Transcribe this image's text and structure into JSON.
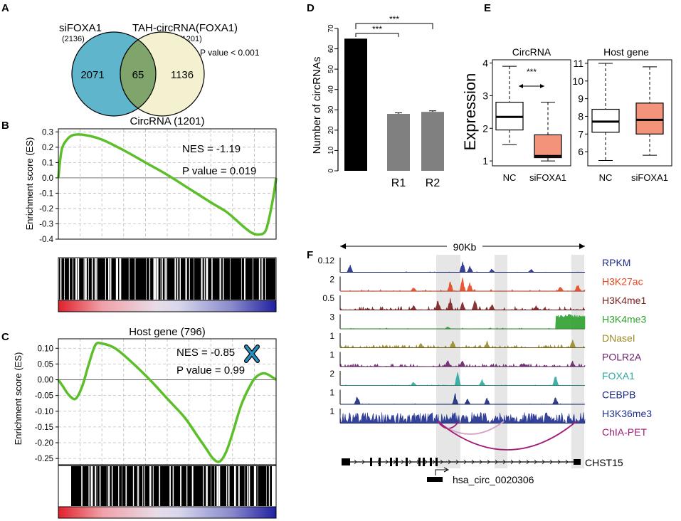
{
  "colors": {
    "venn_left": "#5fb5cc",
    "venn_right": "#f4f1d0",
    "venn_overlap": "#7fa56c",
    "gsea_line": "#5cbf2a",
    "bar_black": "#000000",
    "bar_gray": "#808080",
    "box_salmon": "#f3937a",
    "chip_highlight": "#e6e6e6",
    "cross": "#2a8fbf"
  },
  "panelA": {
    "label": "A",
    "left_title": "siFOXA1",
    "left_count": "(2136)",
    "right_title": "TAH-circRNA(FOXA1)",
    "right_count": "(1201)",
    "left_only": "2071",
    "overlap": "65",
    "right_only": "1136",
    "pvalue": "P value < 0.001"
  },
  "chart_data": [
    {
      "id": "B",
      "type": "line",
      "label": "B",
      "title": "CircRNA (1201)",
      "ylabel": "Enrichment score (ES)",
      "ylim": [
        -0.4,
        0.32
      ],
      "yticks": [
        "0.3",
        "0.2",
        "0.1",
        "0.0",
        "-0.1",
        "-0.2",
        "-0.3",
        "-0.4"
      ],
      "ytick_values": [
        0.3,
        0.2,
        0.1,
        0.0,
        -0.1,
        -0.2,
        -0.3,
        -0.4
      ],
      "nes": "NES = -1.19",
      "pvalue": "P value = 0.019",
      "x": [
        0,
        0.015,
        0.04,
        0.07,
        0.12,
        0.2,
        0.3,
        0.4,
        0.5,
        0.6,
        0.7,
        0.77,
        0.82,
        0.86,
        0.89,
        0.92,
        0.95,
        0.97,
        0.99,
        1.0
      ],
      "y": [
        0.0,
        0.18,
        0.25,
        0.28,
        0.28,
        0.25,
        0.18,
        0.1,
        0.02,
        -0.07,
        -0.16,
        -0.22,
        -0.28,
        -0.33,
        -0.36,
        -0.37,
        -0.35,
        -0.25,
        -0.1,
        0.0
      ]
    },
    {
      "id": "C",
      "type": "line",
      "label": "C",
      "title": "Host gene (796)",
      "ylabel": "Enrichment score (ES)",
      "ylim": [
        -0.27,
        0.13
      ],
      "yticks": [
        "0.10",
        "0.05",
        "0.00",
        "-0.05",
        "-0.10",
        "-0.15",
        "-0.20",
        "-0.25"
      ],
      "ytick_values": [
        0.1,
        0.05,
        0.0,
        -0.05,
        -0.1,
        -0.15,
        -0.2,
        -0.25
      ],
      "nes": "NES = -0.85",
      "pvalue": "P value = 0.99",
      "x": [
        0,
        0.02,
        0.05,
        0.08,
        0.11,
        0.14,
        0.17,
        0.2,
        0.26,
        0.33,
        0.42,
        0.5,
        0.58,
        0.64,
        0.68,
        0.71,
        0.74,
        0.77,
        0.8,
        0.84,
        0.88,
        0.91,
        0.95,
        1.0
      ],
      "y": [
        0.0,
        -0.02,
        -0.05,
        -0.06,
        -0.02,
        0.05,
        0.11,
        0.115,
        0.1,
        0.06,
        0.0,
        -0.06,
        -0.12,
        -0.18,
        -0.22,
        -0.25,
        -0.26,
        -0.23,
        -0.17,
        -0.08,
        -0.02,
        0.01,
        0.02,
        0.0
      ]
    },
    {
      "id": "D",
      "type": "bar",
      "label": "D",
      "ylabel": "Number of circRNAs",
      "categories": [
        "",
        "R1",
        "R2"
      ],
      "values": [
        65,
        28,
        29
      ],
      "errors": [
        0,
        0.5,
        0.5
      ],
      "ylim": [
        0,
        70
      ],
      "yticks": [
        "0",
        "10",
        "20",
        "30",
        "40",
        "50",
        "60",
        "70"
      ],
      "ytick_values": [
        0,
        10,
        20,
        30,
        40,
        50,
        60,
        70
      ],
      "sig1": "***",
      "sig2": "***"
    },
    {
      "id": "E1",
      "type": "box",
      "label": "E",
      "title": "CircRNA",
      "ylabel": "Expression",
      "categories": [
        "NC",
        "siFOXA1"
      ],
      "ylim": [
        0.85,
        4.1
      ],
      "yticks": [
        "1",
        "2",
        "3",
        "4"
      ],
      "ytick_values": [
        1,
        2,
        3,
        4
      ],
      "boxes": [
        {
          "whisker_low": 1.5,
          "q1": 1.95,
          "median": 2.35,
          "q3": 2.8,
          "whisker_high": 3.9
        },
        {
          "whisker_low": 1.0,
          "q1": 1.1,
          "median": 1.15,
          "q3": 1.8,
          "whisker_high": 2.8
        }
      ],
      "sig": "***"
    },
    {
      "id": "E2",
      "type": "box",
      "title": "Host gene",
      "categories": [
        "NC",
        "siFOXA1"
      ],
      "ylim": [
        5.2,
        11.2
      ],
      "yticks": [
        "6",
        "7",
        "8",
        "9",
        "10",
        "11"
      ],
      "ytick_values": [
        6,
        7,
        8,
        9,
        10,
        11
      ],
      "boxes": [
        {
          "whisker_low": 5.5,
          "q1": 7.1,
          "median": 7.7,
          "q3": 8.4,
          "whisker_high": 11.0
        },
        {
          "whisker_low": 5.8,
          "q1": 7.0,
          "median": 7.8,
          "q3": 8.75,
          "whisker_high": 10.8
        }
      ]
    }
  ],
  "panelF": {
    "label": "F",
    "scale_label": "90Kb",
    "tracks": [
      {
        "scale": "0.12",
        "name": "RPKM",
        "color": "#1f2b8c",
        "seed": 11,
        "density": 0.06,
        "base": 0.02,
        "peaks": [
          [
            0.04,
            0.6
          ],
          [
            0.5,
            0.9
          ],
          [
            0.53,
            0.5
          ],
          [
            0.62,
            0.3
          ],
          [
            0.78,
            0.25
          ]
        ]
      },
      {
        "scale": "2",
        "name": "H3K27ac",
        "color": "#e8461f",
        "seed": 21,
        "density": 0.15,
        "base": 0.05,
        "peaks": [
          [
            0.3,
            0.3
          ],
          [
            0.45,
            0.8
          ],
          [
            0.5,
            1.0
          ],
          [
            0.53,
            0.7
          ],
          [
            0.9,
            0.4
          ],
          [
            0.97,
            0.6
          ]
        ]
      },
      {
        "scale": "0.5",
        "name": "H3K4me1",
        "color": "#7a1f1f",
        "seed": 31,
        "density": 0.25,
        "base": 0.1,
        "peaks": [
          [
            0.3,
            0.4
          ],
          [
            0.4,
            0.8
          ],
          [
            0.45,
            0.9
          ],
          [
            0.5,
            0.6
          ],
          [
            0.55,
            0.9
          ],
          [
            0.62,
            0.5
          ],
          [
            0.8,
            0.3
          ]
        ]
      },
      {
        "scale": "3",
        "name": "H3K4me3",
        "color": "#2fa02f",
        "seed": 41,
        "density": 0.08,
        "base": 0.03,
        "peaks": [
          [
            0.44,
            0.2
          ],
          [
            0.9,
            0.9
          ],
          [
            0.93,
            1.0
          ],
          [
            0.96,
            0.95
          ],
          [
            0.98,
            0.95
          ]
        ]
      },
      {
        "scale": "1",
        "name": "DNaseI",
        "color": "#9a8a2a",
        "seed": 51,
        "density": 0.35,
        "base": 0.08,
        "peaks": [
          [
            0.33,
            0.4
          ],
          [
            0.46,
            0.6
          ],
          [
            0.6,
            0.5
          ],
          [
            0.95,
            0.7
          ]
        ]
      },
      {
        "scale": "1",
        "name": "POLR2A",
        "color": "#6a1f6a",
        "seed": 61,
        "density": 0.3,
        "base": 0.08,
        "peaks": [
          [
            0.44,
            0.5
          ],
          [
            0.5,
            0.5
          ],
          [
            0.75,
            0.3
          ],
          [
            0.95,
            0.4
          ]
        ]
      },
      {
        "scale": "2",
        "name": "FOXA1",
        "color": "#2aa8a0",
        "seed": 71,
        "density": 0.05,
        "base": 0.02,
        "peaks": [
          [
            0.3,
            0.3
          ],
          [
            0.48,
            1.0
          ],
          [
            0.58,
            0.5
          ],
          [
            0.88,
            0.9
          ]
        ]
      },
      {
        "scale": "1",
        "name": "CEBPB",
        "color": "#1a2a7a",
        "seed": 81,
        "density": 0.06,
        "base": 0.02,
        "peaks": [
          [
            0.07,
            0.7
          ],
          [
            0.47,
            0.8
          ],
          [
            0.52,
            0.4
          ],
          [
            0.6,
            0.5
          ],
          [
            0.88,
            0.6
          ]
        ]
      },
      {
        "scale": "1",
        "name": "H3K36me3",
        "color": "#1f2f8f",
        "seed": 91,
        "density": 0.9,
        "base": 0.3,
        "peaks": []
      }
    ],
    "chiapet_label": "ChIA-PET",
    "chiapet_color": "#a01c78",
    "gene_label": "CHST15",
    "circ_label": "hsa_circ_0020306"
  }
}
